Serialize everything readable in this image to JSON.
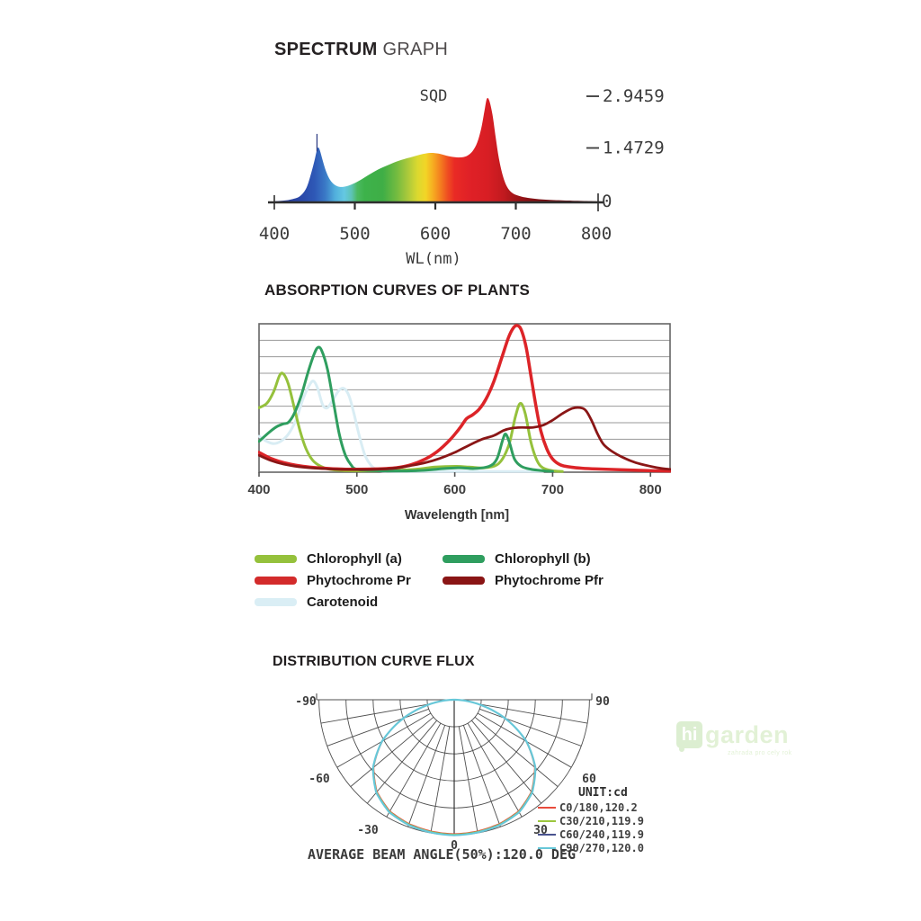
{
  "sections": {
    "spectrum": {
      "title_bold": "SPECTRUM",
      "title_rest": "GRAPH"
    },
    "absorption": {
      "title": "ABSORPTION CURVES OF PLANTS"
    },
    "distribution": {
      "title": "DISTRIBUTION CURVE FLUX"
    }
  },
  "absorption_legend": [
    {
      "label": "Chlorophyll (a)",
      "color": "#95c13c"
    },
    {
      "label": "Chlorophyll (b)",
      "color": "#2f9e5f"
    },
    {
      "label": "Phytochrome Pr",
      "color": "#d32b2b"
    },
    {
      "label": "Phytochrome Pfr",
      "color": "#8a1515"
    },
    {
      "label": "Carotenoid",
      "color": "#daeef5"
    }
  ],
  "distribution_legend": {
    "unit": "UNIT:cd",
    "entries": [
      {
        "label": "C0/180,120.2",
        "color": "#e84b3c"
      },
      {
        "label": "C30/210,119.9",
        "color": "#9cc63e"
      },
      {
        "label": "C60/240,119.9",
        "color": "#49538f"
      },
      {
        "label": "C90/270,120.0",
        "color": "#67c7d8"
      }
    ],
    "footer": "AVERAGE BEAM ANGLE(50%):120.0 DEG"
  },
  "watermark": {
    "brand_hi": "hi",
    "brand_rest": "garden",
    "tagline": "zahrada pro cely rok"
  },
  "chart_data": [
    {
      "type": "area",
      "title": "SQD",
      "xlabel": "WL(nm)",
      "xlim": [
        400,
        805
      ],
      "ylim": [
        0,
        3.1
      ],
      "x_ticks": [
        400,
        500,
        600,
        700,
        800
      ],
      "y_ticks": [
        {
          "v": 2.9459,
          "label": "2.9459"
        },
        {
          "v": 1.4729,
          "label": "1.4729"
        }
      ],
      "y_zero_label": "0",
      "points": [
        [
          400,
          0.03
        ],
        [
          412,
          0.05
        ],
        [
          422,
          0.09
        ],
        [
          432,
          0.18
        ],
        [
          440,
          0.42
        ],
        [
          446,
          0.85
        ],
        [
          450,
          1.2
        ],
        [
          453,
          1.5
        ],
        [
          455,
          1.56
        ],
        [
          457,
          1.45
        ],
        [
          460,
          1.2
        ],
        [
          464,
          0.9
        ],
        [
          469,
          0.65
        ],
        [
          475,
          0.5
        ],
        [
          482,
          0.44
        ],
        [
          490,
          0.46
        ],
        [
          500,
          0.55
        ],
        [
          510,
          0.68
        ],
        [
          520,
          0.82
        ],
        [
          532,
          0.97
        ],
        [
          545,
          1.1
        ],
        [
          558,
          1.21
        ],
        [
          572,
          1.3
        ],
        [
          585,
          1.38
        ],
        [
          594,
          1.41
        ],
        [
          604,
          1.39
        ],
        [
          614,
          1.33
        ],
        [
          623,
          1.29
        ],
        [
          631,
          1.28
        ],
        [
          639,
          1.32
        ],
        [
          646,
          1.45
        ],
        [
          652,
          1.7
        ],
        [
          657,
          2.1
        ],
        [
          661,
          2.6
        ],
        [
          664,
          2.95
        ],
        [
          667,
          2.9
        ],
        [
          671,
          2.5
        ],
        [
          675,
          1.85
        ],
        [
          679,
          1.25
        ],
        [
          684,
          0.75
        ],
        [
          689,
          0.45
        ],
        [
          695,
          0.28
        ],
        [
          702,
          0.2
        ],
        [
          712,
          0.14
        ],
        [
          725,
          0.1
        ],
        [
          742,
          0.07
        ],
        [
          765,
          0.05
        ],
        [
          785,
          0.04
        ],
        [
          805,
          0.03
        ]
      ],
      "spike": {
        "x": 453,
        "v_from": 1.45,
        "v_to": 1.95,
        "color": "#27357f"
      },
      "gradient": [
        [
          400,
          "#27388c"
        ],
        [
          432,
          "#2a47a8"
        ],
        [
          450,
          "#2e58b6"
        ],
        [
          463,
          "#3a78c6"
        ],
        [
          476,
          "#52b1dd"
        ],
        [
          487,
          "#65c8e2"
        ],
        [
          496,
          "#5dc3b5"
        ],
        [
          503,
          "#4bb961"
        ],
        [
          512,
          "#3db24b"
        ],
        [
          535,
          "#3fae46"
        ],
        [
          552,
          "#73bb40"
        ],
        [
          566,
          "#abc93b"
        ],
        [
          578,
          "#dcd92f"
        ],
        [
          588,
          "#f2d526"
        ],
        [
          597,
          "#f6ad21"
        ],
        [
          606,
          "#f4801f"
        ],
        [
          615,
          "#ef4f21"
        ],
        [
          624,
          "#e92a25"
        ],
        [
          642,
          "#e02127"
        ],
        [
          665,
          "#d81e24"
        ],
        [
          685,
          "#c11a1f"
        ],
        [
          700,
          "#a01518"
        ],
        [
          715,
          "#891215"
        ],
        [
          735,
          "#751013"
        ],
        [
          765,
          "#650d10"
        ],
        [
          805,
          "#5a0b0d"
        ]
      ]
    },
    {
      "type": "line",
      "xlabel": "Wavelength [nm]",
      "xlim": [
        400,
        820
      ],
      "ylim": [
        0,
        1
      ],
      "x_ticks": [
        400,
        500,
        600,
        700,
        800
      ],
      "gridlines": 8,
      "series": [
        {
          "name": "Carotenoid",
          "color": "#d9edf4",
          "width": 3,
          "points": [
            [
              400,
              0.245
            ],
            [
              408,
              0.21
            ],
            [
              415,
              0.195
            ],
            [
              422,
              0.21
            ],
            [
              430,
              0.26
            ],
            [
              438,
              0.36
            ],
            [
              445,
              0.5
            ],
            [
              452,
              0.6
            ],
            [
              456,
              0.62
            ],
            [
              460,
              0.57
            ],
            [
              465,
              0.46
            ],
            [
              470,
              0.44
            ],
            [
              476,
              0.5
            ],
            [
              482,
              0.56
            ],
            [
              487,
              0.57
            ],
            [
              492,
              0.52
            ],
            [
              497,
              0.4
            ],
            [
              502,
              0.26
            ],
            [
              508,
              0.12
            ],
            [
              514,
              0.05
            ],
            [
              520,
              0.02
            ],
            [
              532,
              0.006
            ],
            [
              600,
              0.005
            ],
            [
              690,
              0.005
            ]
          ]
        },
        {
          "name": "Chlorophyll (a)",
          "color": "#95c13c",
          "width": 3,
          "points": [
            [
              400,
              0.44
            ],
            [
              408,
              0.47
            ],
            [
              415,
              0.55
            ],
            [
              421,
              0.66
            ],
            [
              425,
              0.67
            ],
            [
              430,
              0.6
            ],
            [
              436,
              0.44
            ],
            [
              442,
              0.28
            ],
            [
              448,
              0.16
            ],
            [
              455,
              0.08
            ],
            [
              463,
              0.04
            ],
            [
              472,
              0.02
            ],
            [
              490,
              0.01
            ],
            [
              530,
              0.01
            ],
            [
              560,
              0.02
            ],
            [
              580,
              0.035
            ],
            [
              600,
              0.04
            ],
            [
              615,
              0.035
            ],
            [
              630,
              0.03
            ],
            [
              645,
              0.06
            ],
            [
              655,
              0.18
            ],
            [
              662,
              0.38
            ],
            [
              667,
              0.47
            ],
            [
              672,
              0.4
            ],
            [
              678,
              0.2
            ],
            [
              684,
              0.08
            ],
            [
              690,
              0.03
            ],
            [
              700,
              0.01
            ],
            [
              710,
              0.005
            ]
          ]
        },
        {
          "name": "Chlorophyll (b)",
          "color": "#2f9e5f",
          "width": 3,
          "points": [
            [
              400,
              0.21
            ],
            [
              410,
              0.27
            ],
            [
              418,
              0.31
            ],
            [
              425,
              0.33
            ],
            [
              430,
              0.34
            ],
            [
              436,
              0.4
            ],
            [
              443,
              0.52
            ],
            [
              450,
              0.68
            ],
            [
              456,
              0.8
            ],
            [
              460,
              0.85
            ],
            [
              464,
              0.83
            ],
            [
              470,
              0.7
            ],
            [
              476,
              0.48
            ],
            [
              482,
              0.26
            ],
            [
              488,
              0.12
            ],
            [
              494,
              0.05
            ],
            [
              500,
              0.02
            ],
            [
              520,
              0.01
            ],
            [
              560,
              0.01
            ],
            [
              590,
              0.025
            ],
            [
              605,
              0.03
            ],
            [
              620,
              0.025
            ],
            [
              635,
              0.04
            ],
            [
              643,
              0.09
            ],
            [
              649,
              0.22
            ],
            [
              652,
              0.26
            ],
            [
              656,
              0.2
            ],
            [
              661,
              0.09
            ],
            [
              668,
              0.04
            ],
            [
              678,
              0.02
            ],
            [
              690,
              0.01
            ],
            [
              700,
              0.005
            ]
          ]
        },
        {
          "name": "Phytochrome Pr",
          "color": "#dc2428",
          "width": 3.5,
          "points": [
            [
              400,
              0.135
            ],
            [
              410,
              0.1
            ],
            [
              420,
              0.075
            ],
            [
              432,
              0.055
            ],
            [
              445,
              0.04
            ],
            [
              460,
              0.03
            ],
            [
              480,
              0.022
            ],
            [
              500,
              0.02
            ],
            [
              520,
              0.022
            ],
            [
              540,
              0.03
            ],
            [
              555,
              0.05
            ],
            [
              570,
              0.09
            ],
            [
              582,
              0.14
            ],
            [
              595,
              0.22
            ],
            [
              605,
              0.3
            ],
            [
              612,
              0.365
            ],
            [
              618,
              0.39
            ],
            [
              625,
              0.43
            ],
            [
              632,
              0.5
            ],
            [
              640,
              0.62
            ],
            [
              648,
              0.78
            ],
            [
              655,
              0.92
            ],
            [
              660,
              0.985
            ],
            [
              664,
              1.0
            ],
            [
              668,
              0.97
            ],
            [
              673,
              0.85
            ],
            [
              678,
              0.65
            ],
            [
              683,
              0.45
            ],
            [
              688,
              0.28
            ],
            [
              694,
              0.16
            ],
            [
              700,
              0.09
            ],
            [
              708,
              0.05
            ],
            [
              718,
              0.035
            ],
            [
              730,
              0.027
            ],
            [
              745,
              0.022
            ],
            [
              765,
              0.018
            ],
            [
              790,
              0.012
            ],
            [
              820,
              0.008
            ]
          ]
        },
        {
          "name": "Phytochrome Pfr",
          "color": "#8a1616",
          "width": 2.8,
          "points": [
            [
              400,
              0.115
            ],
            [
              412,
              0.08
            ],
            [
              425,
              0.055
            ],
            [
              440,
              0.038
            ],
            [
              460,
              0.026
            ],
            [
              480,
              0.02
            ],
            [
              500,
              0.018
            ],
            [
              520,
              0.02
            ],
            [
              540,
              0.028
            ],
            [
              555,
              0.045
            ],
            [
              570,
              0.065
            ],
            [
              585,
              0.095
            ],
            [
              600,
              0.135
            ],
            [
              615,
              0.185
            ],
            [
              628,
              0.225
            ],
            [
              640,
              0.25
            ],
            [
              650,
              0.285
            ],
            [
              658,
              0.3
            ],
            [
              668,
              0.305
            ],
            [
              680,
              0.305
            ],
            [
              690,
              0.32
            ],
            [
              700,
              0.355
            ],
            [
              710,
              0.4
            ],
            [
              720,
              0.435
            ],
            [
              728,
              0.44
            ],
            [
              734,
              0.42
            ],
            [
              740,
              0.35
            ],
            [
              746,
              0.26
            ],
            [
              752,
              0.19
            ],
            [
              760,
              0.145
            ],
            [
              772,
              0.1
            ],
            [
              785,
              0.065
            ],
            [
              800,
              0.04
            ],
            [
              812,
              0.025
            ],
            [
              820,
              0.02
            ]
          ]
        }
      ]
    },
    {
      "type": "polar",
      "rings_cd": [
        24,
        48,
        72,
        96,
        120
      ],
      "axis_max_cd": 120.25,
      "spoke_step_deg": 10,
      "angle_labels": [
        -90,
        -60,
        -30,
        0,
        30,
        60,
        90
      ],
      "curve_cd": [
        [
          0,
          120.2
        ],
        [
          10,
          119.6
        ],
        [
          20,
          118.2
        ],
        [
          30,
          115.2
        ],
        [
          40,
          107.5
        ],
        [
          50,
          94
        ],
        [
          60,
          74
        ],
        [
          70,
          48
        ],
        [
          78,
          26
        ],
        [
          84,
          12
        ],
        [
          88,
          4
        ],
        [
          90,
          0
        ]
      ],
      "curves": [
        {
          "name": "C0/180",
          "color": "#e84b3c",
          "width": 1,
          "scale": 0.989
        },
        {
          "name": "C30/210",
          "color": "#9cc63e",
          "width": 1,
          "scale": 0.993
        },
        {
          "name": "C60/240",
          "color": "#49538f",
          "width": 1,
          "scale": 0.997
        },
        {
          "name": "C90/270",
          "color": "#67c7d8",
          "width": 2.2,
          "scale": 1.0
        }
      ]
    }
  ]
}
